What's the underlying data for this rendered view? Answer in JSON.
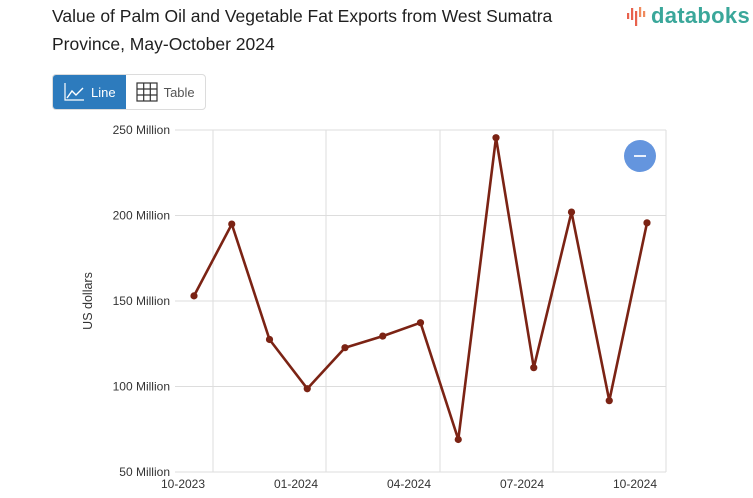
{
  "header": {
    "title": "Value of Palm Oil and Vegetable Fat Exports from West Sumatra Province, May-October 2024",
    "logo_text": "databoks"
  },
  "view_toggle": {
    "line_label": "Line",
    "table_label": "Table",
    "active": "Line"
  },
  "zoom_control": {
    "icon": "minus-icon"
  },
  "colors": {
    "line": "#7b2314",
    "toggle_active": "#2d7bbd",
    "zoom_button": "#6495de",
    "logo_text": "#3aa79a",
    "grid": "#dddddd"
  },
  "chart_data": {
    "type": "line",
    "title": "Value of Palm Oil and Vegetable Fat Exports from West Sumatra Province, May-October 2024",
    "xlabel": "",
    "ylabel": "US dollars",
    "ylim": [
      50000000,
      250000000
    ],
    "y_ticks": [
      "250 Million",
      "200 Million",
      "150 Million",
      "100 Million",
      "50 Million"
    ],
    "x_ticks": [
      "10-2023",
      "01-2024",
      "04-2024",
      "07-2024",
      "10-2024"
    ],
    "grid": true,
    "legend": null,
    "x": [
      "10-2023",
      "11-2023",
      "12-2023",
      "01-2024",
      "02-2024",
      "03-2024",
      "04-2024",
      "05-2024",
      "06-2024",
      "07-2024",
      "08-2024",
      "09-2024",
      "10-2024"
    ],
    "series": [
      {
        "name": "Value of Palm Oil and Vegetable Fat Exports",
        "values": [
          153000000,
          195000000,
          127500000,
          98700000,
          122700000,
          129500000,
          137300000,
          69000000,
          245500000,
          111000000,
          202000000,
          91700000,
          195700000
        ]
      }
    ]
  }
}
